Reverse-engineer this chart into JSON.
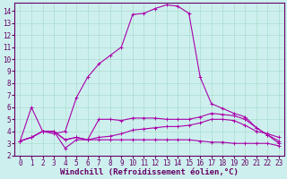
{
  "xlabel": "Windchill (Refroidissement éolien,°C)",
  "background_color": "#cdf0ee",
  "grid_color": "#aaddcc",
  "line_color": "#aa00aa",
  "xlim": [
    -0.5,
    23.5
  ],
  "ylim": [
    2,
    14.7
  ],
  "xticks": [
    0,
    1,
    2,
    3,
    4,
    5,
    6,
    7,
    8,
    9,
    10,
    11,
    12,
    13,
    14,
    15,
    16,
    17,
    18,
    19,
    20,
    21,
    22,
    23
  ],
  "yticks": [
    2,
    3,
    4,
    5,
    6,
    7,
    8,
    9,
    10,
    11,
    12,
    13,
    14
  ],
  "line_big_x": [
    0,
    1,
    2,
    3,
    4,
    5,
    6,
    7,
    8,
    9,
    10,
    11,
    12,
    13,
    14,
    15,
    16,
    17,
    18,
    19,
    20,
    21,
    22,
    23
  ],
  "line_big_y": [
    3.2,
    6.0,
    4.0,
    3.8,
    4.0,
    6.8,
    8.5,
    9.6,
    10.3,
    11.0,
    13.7,
    13.8,
    14.2,
    14.5,
    14.4,
    13.8,
    8.5,
    6.3,
    5.9,
    5.5,
    5.2,
    4.3,
    3.7,
    3.0
  ],
  "line_mid1_x": [
    0,
    1,
    2,
    3,
    4,
    5,
    6,
    7,
    8,
    9,
    10,
    11,
    12,
    13,
    14,
    15,
    16,
    17,
    18,
    19,
    20,
    21,
    22,
    23
  ],
  "line_mid1_y": [
    3.2,
    3.5,
    4.0,
    4.0,
    3.3,
    3.5,
    3.3,
    5.0,
    5.0,
    4.9,
    5.1,
    5.1,
    5.1,
    5.0,
    5.0,
    5.0,
    5.2,
    5.5,
    5.4,
    5.3,
    5.0,
    4.3,
    3.7,
    3.2
  ],
  "line_mid2_x": [
    0,
    1,
    2,
    3,
    4,
    5,
    6,
    7,
    8,
    9,
    10,
    11,
    12,
    13,
    14,
    15,
    16,
    17,
    18,
    19,
    20,
    21,
    22,
    23
  ],
  "line_mid2_y": [
    3.2,
    3.5,
    4.0,
    4.0,
    3.3,
    3.5,
    3.3,
    3.5,
    3.6,
    3.8,
    4.1,
    4.2,
    4.3,
    4.4,
    4.4,
    4.5,
    4.7,
    5.0,
    5.0,
    4.9,
    4.5,
    4.0,
    3.8,
    3.5
  ],
  "line_low_x": [
    0,
    1,
    2,
    3,
    4,
    5,
    6,
    7,
    8,
    9,
    10,
    11,
    12,
    13,
    14,
    15,
    16,
    17,
    18,
    19,
    20,
    21,
    22,
    23
  ],
  "line_low_y": [
    3.2,
    3.5,
    4.0,
    4.0,
    2.6,
    3.3,
    3.3,
    3.3,
    3.3,
    3.3,
    3.3,
    3.3,
    3.3,
    3.3,
    3.3,
    3.3,
    3.2,
    3.1,
    3.1,
    3.0,
    3.0,
    3.0,
    3.0,
    2.8
  ],
  "tick_fontsize": 5.5,
  "label_fontsize": 6.5
}
